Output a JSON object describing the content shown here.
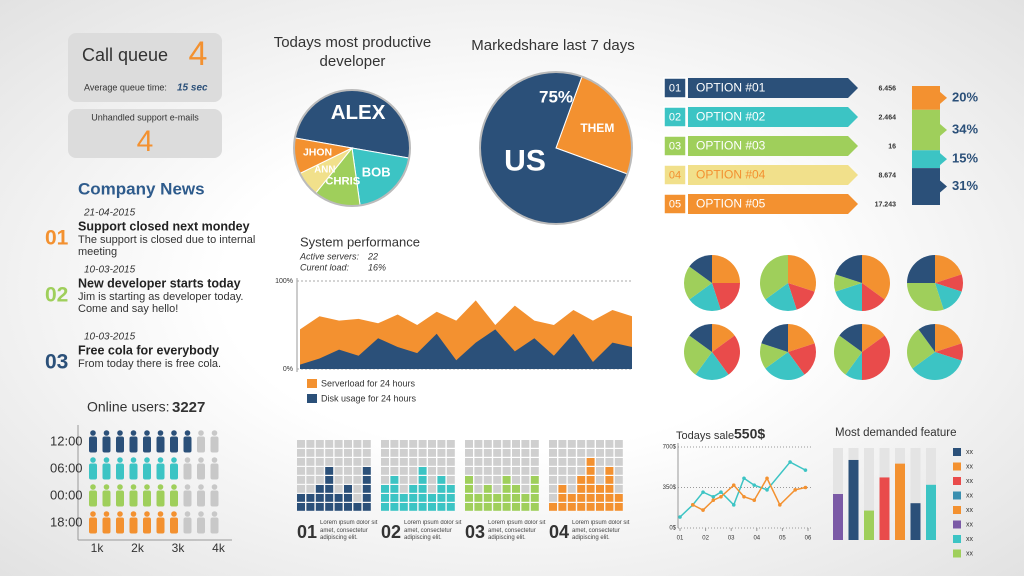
{
  "call_queue": {
    "label": "Call queue",
    "count": 4,
    "avg_label": "Average queue time:",
    "avg_value": "15 sec"
  },
  "unhandled_emails": {
    "label": "Unhandled support e-mails",
    "count": 4
  },
  "news": {
    "title": "Company News",
    "items": [
      {
        "number": "01",
        "date": "21-04-2015",
        "headline": "Support closed next mondey",
        "body": "The support is closed due to internal meeting",
        "color": "#f39130"
      },
      {
        "number": "02",
        "date": "10-03-2015",
        "headline": "New developer starts today",
        "body": "Jim is starting as developer today. Come and say hello!",
        "color": "#9fcf5b"
      },
      {
        "number": "03",
        "date": "10-03-2015",
        "headline": "Free cola for everybody",
        "body": "From today there is free cola.",
        "color": "#2b5079"
      }
    ]
  },
  "online_users": {
    "label": "Online users:",
    "total": 3227,
    "icons_per_row": 10,
    "rows": [
      {
        "time": "12:00",
        "filled": 8,
        "color": "#2b5079"
      },
      {
        "time": "06:00",
        "filled": 7,
        "color": "#3cc4c4"
      },
      {
        "time": "00:00",
        "filled": 7,
        "color": "#9fcf5b"
      },
      {
        "time": "18:00",
        "filled": 7,
        "color": "#f39130"
      }
    ],
    "axis_labels": [
      "1k",
      "2k",
      "3k",
      "4k"
    ]
  },
  "developer_pie": {
    "type": "pie",
    "title": "Todays most productive developer",
    "labels": [
      "ALEX",
      "BOB",
      "CHRIS",
      "ANN",
      "JHON"
    ],
    "values": [
      50,
      20,
      13,
      7,
      10
    ],
    "colors": [
      "#2b5079",
      "#3cc4c4",
      "#9fcf5b",
      "#f1e08b",
      "#f39130"
    ]
  },
  "marketshare_pie": {
    "type": "pie",
    "title": "Markedshare last 7 days",
    "labels": [
      "THEM",
      "US"
    ],
    "values": [
      25,
      75
    ],
    "value_labels": [
      null,
      "75%"
    ],
    "colors": [
      "#f39130",
      "#2b5079"
    ]
  },
  "options": [
    {
      "number": "01",
      "label": "OPTION #01",
      "value": 6.456,
      "color": "#2b5079"
    },
    {
      "number": "02",
      "label": "OPTION #02",
      "value": 2.464,
      "color": "#3cc4c4"
    },
    {
      "number": "03",
      "label": "OPTION #03",
      "value": 16,
      "color": "#9fcf5b"
    },
    {
      "number": "04",
      "label": "OPTION #04",
      "value": 8.674,
      "color": "#f1e08b"
    },
    {
      "number": "05",
      "label": "OPTION #05",
      "value": 17.243,
      "color": "#f39130"
    }
  ],
  "percent_stack": {
    "values": [
      20,
      34,
      15,
      31
    ],
    "value_labels": [
      "20%",
      "34%",
      "15%",
      "31%"
    ],
    "colors": [
      "#f39130",
      "#9fcf5b",
      "#3cc4c4",
      "#2b5079"
    ]
  },
  "small_pies": {
    "colors": [
      "#f39130",
      "#e94b4b",
      "#3cc4c4",
      "#9fcf5b",
      "#2b5079"
    ],
    "pies": [
      [
        25,
        20,
        20,
        20,
        15
      ],
      [
        30,
        15,
        20,
        35,
        0
      ],
      [
        35,
        15,
        20,
        10,
        20
      ],
      [
        20,
        10,
        15,
        30,
        25
      ],
      [
        15,
        25,
        20,
        25,
        15
      ],
      [
        20,
        20,
        25,
        15,
        20
      ],
      [
        15,
        35,
        10,
        25,
        15
      ],
      [
        20,
        10,
        35,
        25,
        10
      ]
    ]
  },
  "system_performance": {
    "title": "System performance",
    "stats": [
      {
        "label": "Active servers:",
        "value": 22
      },
      {
        "label": "Curent load:",
        "value": 16,
        "value_label": "16%"
      }
    ],
    "ylim": [
      0,
      100
    ],
    "yticks": [
      {
        "value": 100,
        "label": "100%"
      },
      {
        "value": 0,
        "label": "0%"
      }
    ],
    "series": [
      {
        "name": "Serverload for 24 hours",
        "color": "#f39130",
        "values": [
          45,
          60,
          55,
          57,
          52,
          62,
          50,
          65,
          55,
          78,
          50,
          72,
          55,
          50,
          67,
          55,
          67,
          60
        ]
      },
      {
        "name": "Disk usage for 24 hours",
        "color": "#2b5079",
        "values": [
          5,
          12,
          22,
          15,
          35,
          25,
          18,
          40,
          10,
          30,
          45,
          20,
          35,
          15,
          40,
          8,
          30,
          25
        ]
      }
    ]
  },
  "waffles": {
    "rows": 8,
    "items": [
      {
        "number": "01",
        "text": "Lorem ipsum dolor sit amet, consectetur adipiscing elit.",
        "color": "#2b5079",
        "columns": [
          2,
          2,
          3,
          5,
          2,
          3,
          1,
          5
        ]
      },
      {
        "number": "02",
        "text": "Lorem ipsum dolor sit amet, consectetur adipiscing elit.",
        "color": "#3cc4c4",
        "columns": [
          3,
          4,
          2,
          3,
          5,
          2,
          4,
          3
        ]
      },
      {
        "number": "03",
        "text": "Lorem ipsum dolor sit amet, consectetur adipiscing elit.",
        "color": "#9fcf5b",
        "columns": [
          4,
          2,
          3,
          2,
          4,
          3,
          2,
          4
        ]
      },
      {
        "number": "04",
        "text": "Lorem ipsum dolor sit amet, consectetur adipiscing elit.",
        "color": "#f39130",
        "columns": [
          1,
          3,
          2,
          4,
          6,
          3,
          5,
          2
        ]
      }
    ]
  },
  "sales": {
    "title": "Todays sale",
    "total": 550,
    "total_label": "550$",
    "xlim": [
      1,
      6
    ],
    "xticks": [
      {
        "value": 1,
        "label": "01"
      },
      {
        "value": 2,
        "label": "02"
      },
      {
        "value": 3,
        "label": "03"
      },
      {
        "value": 4,
        "label": "04"
      },
      {
        "value": 5,
        "label": "05"
      },
      {
        "value": 6,
        "label": "06"
      }
    ],
    "ylim": [
      0,
      700
    ],
    "yticks": [
      {
        "value": 700,
        "label": "700$"
      },
      {
        "value": 350,
        "label": "350$"
      },
      {
        "value": 0,
        "label": "0$"
      }
    ],
    "series": [
      {
        "color": "#3cc4c4",
        "x": [
          1,
          1.5,
          1.9,
          2.3,
          2.6,
          3.1,
          3.5,
          3.9,
          4.4,
          5.3,
          5.9
        ],
        "values": [
          95,
          200,
          310,
          270,
          310,
          200,
          430,
          370,
          330,
          570,
          500
        ]
      },
      {
        "color": "#f39130",
        "x": [
          1.5,
          1.9,
          2.3,
          2.6,
          3.1,
          3.5,
          3.9,
          4.4,
          4.9,
          5.5,
          5.9
        ],
        "values": [
          200,
          155,
          240,
          270,
          370,
          270,
          240,
          430,
          200,
          330,
          350
        ]
      }
    ]
  },
  "demanded": {
    "title": "Most demanded feature",
    "ylim": [
      0,
      100
    ],
    "values": [
      50,
      87,
      32,
      68,
      83,
      40,
      60
    ],
    "colors": [
      "#7b5aa6",
      "#2b5079",
      "#9fcf5b",
      "#e94b4b",
      "#f39130",
      "#2b5079",
      "#3cc4c4"
    ],
    "legend": [
      {
        "label": "xx",
        "color": "#2b5079"
      },
      {
        "label": "xx",
        "color": "#f39130"
      },
      {
        "label": "xx",
        "color": "#e94b4b"
      },
      {
        "label": "xx",
        "color": "#3a8fb0"
      },
      {
        "label": "xx",
        "color": "#f39130"
      },
      {
        "label": "xx",
        "color": "#7b5aa6"
      },
      {
        "label": "xx",
        "color": "#3cc4c4"
      },
      {
        "label": "xx",
        "color": "#9fcf5b"
      }
    ]
  }
}
